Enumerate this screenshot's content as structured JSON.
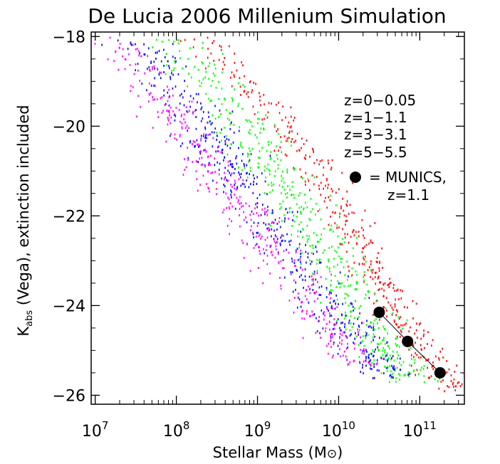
{
  "chart_data": {
    "type": "scatter",
    "title": "De Lucia 2006 Millenium Simulation",
    "xlabel_main": "Stellar Mass (M",
    "xlabel_sym": "⊙",
    "xlabel_close": ")",
    "ylabel_main": "K",
    "ylabel_sub": "abs",
    "ylabel_rest": " (Vega), extinction included",
    "x_scale": "log",
    "xlim_log10": [
      6.95,
      11.55
    ],
    "ylim": [
      -26.2,
      -17.9
    ],
    "y_reversed": true,
    "x_ticks": [
      {
        "base": "10",
        "exp": "7",
        "log10": 7
      },
      {
        "base": "10",
        "exp": "8",
        "log10": 8
      },
      {
        "base": "10",
        "exp": "9",
        "log10": 9
      },
      {
        "base": "10",
        "exp": "10",
        "log10": 10
      },
      {
        "base": "10",
        "exp": "11",
        "log10": 11
      }
    ],
    "y_ticks": [
      {
        "label": "−18",
        "value": -18
      },
      {
        "label": "−20",
        "value": -20
      },
      {
        "label": "−22",
        "value": -22
      },
      {
        "label": "−24",
        "value": -24
      },
      {
        "label": "−26",
        "value": -26
      }
    ],
    "grid": false,
    "legend_placement": "right",
    "series": [
      {
        "name": "z=0−0.05",
        "color": "#ff0000",
        "trend": [
          [
            8.3,
            -18.0
          ],
          [
            9.0,
            -19.3
          ],
          [
            9.6,
            -20.7
          ],
          [
            10.1,
            -22.1
          ],
          [
            10.55,
            -23.6
          ],
          [
            11.0,
            -24.8
          ],
          [
            11.45,
            -25.9
          ]
        ],
        "count": 420,
        "width": 0.28
      },
      {
        "name": "z=1−1.1",
        "color": "#00ff00",
        "trend": [
          [
            7.9,
            -18.0
          ],
          [
            8.6,
            -19.5
          ],
          [
            9.2,
            -21.0
          ],
          [
            9.7,
            -22.4
          ],
          [
            10.2,
            -23.8
          ],
          [
            10.6,
            -25.0
          ],
          [
            10.9,
            -25.7
          ]
        ],
        "count": 520,
        "width": 0.4
      },
      {
        "name": "z=3−3.1",
        "color": "#0000ff",
        "trend": [
          [
            7.45,
            -18.0
          ],
          [
            8.1,
            -19.4
          ],
          [
            8.7,
            -20.9
          ],
          [
            9.25,
            -22.3
          ],
          [
            9.8,
            -23.7
          ],
          [
            10.3,
            -24.9
          ],
          [
            10.6,
            -25.6
          ]
        ],
        "count": 480,
        "width": 0.38
      },
      {
        "name": "z=5−5.5",
        "color": "#ff00ff",
        "trend": [
          [
            7.2,
            -18.0
          ],
          [
            7.75,
            -19.2
          ],
          [
            8.3,
            -20.6
          ],
          [
            8.85,
            -22.0
          ],
          [
            9.4,
            -23.3
          ],
          [
            9.9,
            -24.5
          ],
          [
            10.3,
            -25.3
          ]
        ],
        "count": 420,
        "width": 0.36
      }
    ],
    "munics": {
      "label": "= MUNICS,",
      "label2": "z=1.1",
      "color": "#000000",
      "points": [
        {
          "log_mass": 10.5,
          "k": -24.15
        },
        {
          "log_mass": 10.85,
          "k": -24.8
        },
        {
          "log_mass": 11.25,
          "k": -25.5
        }
      ]
    }
  }
}
